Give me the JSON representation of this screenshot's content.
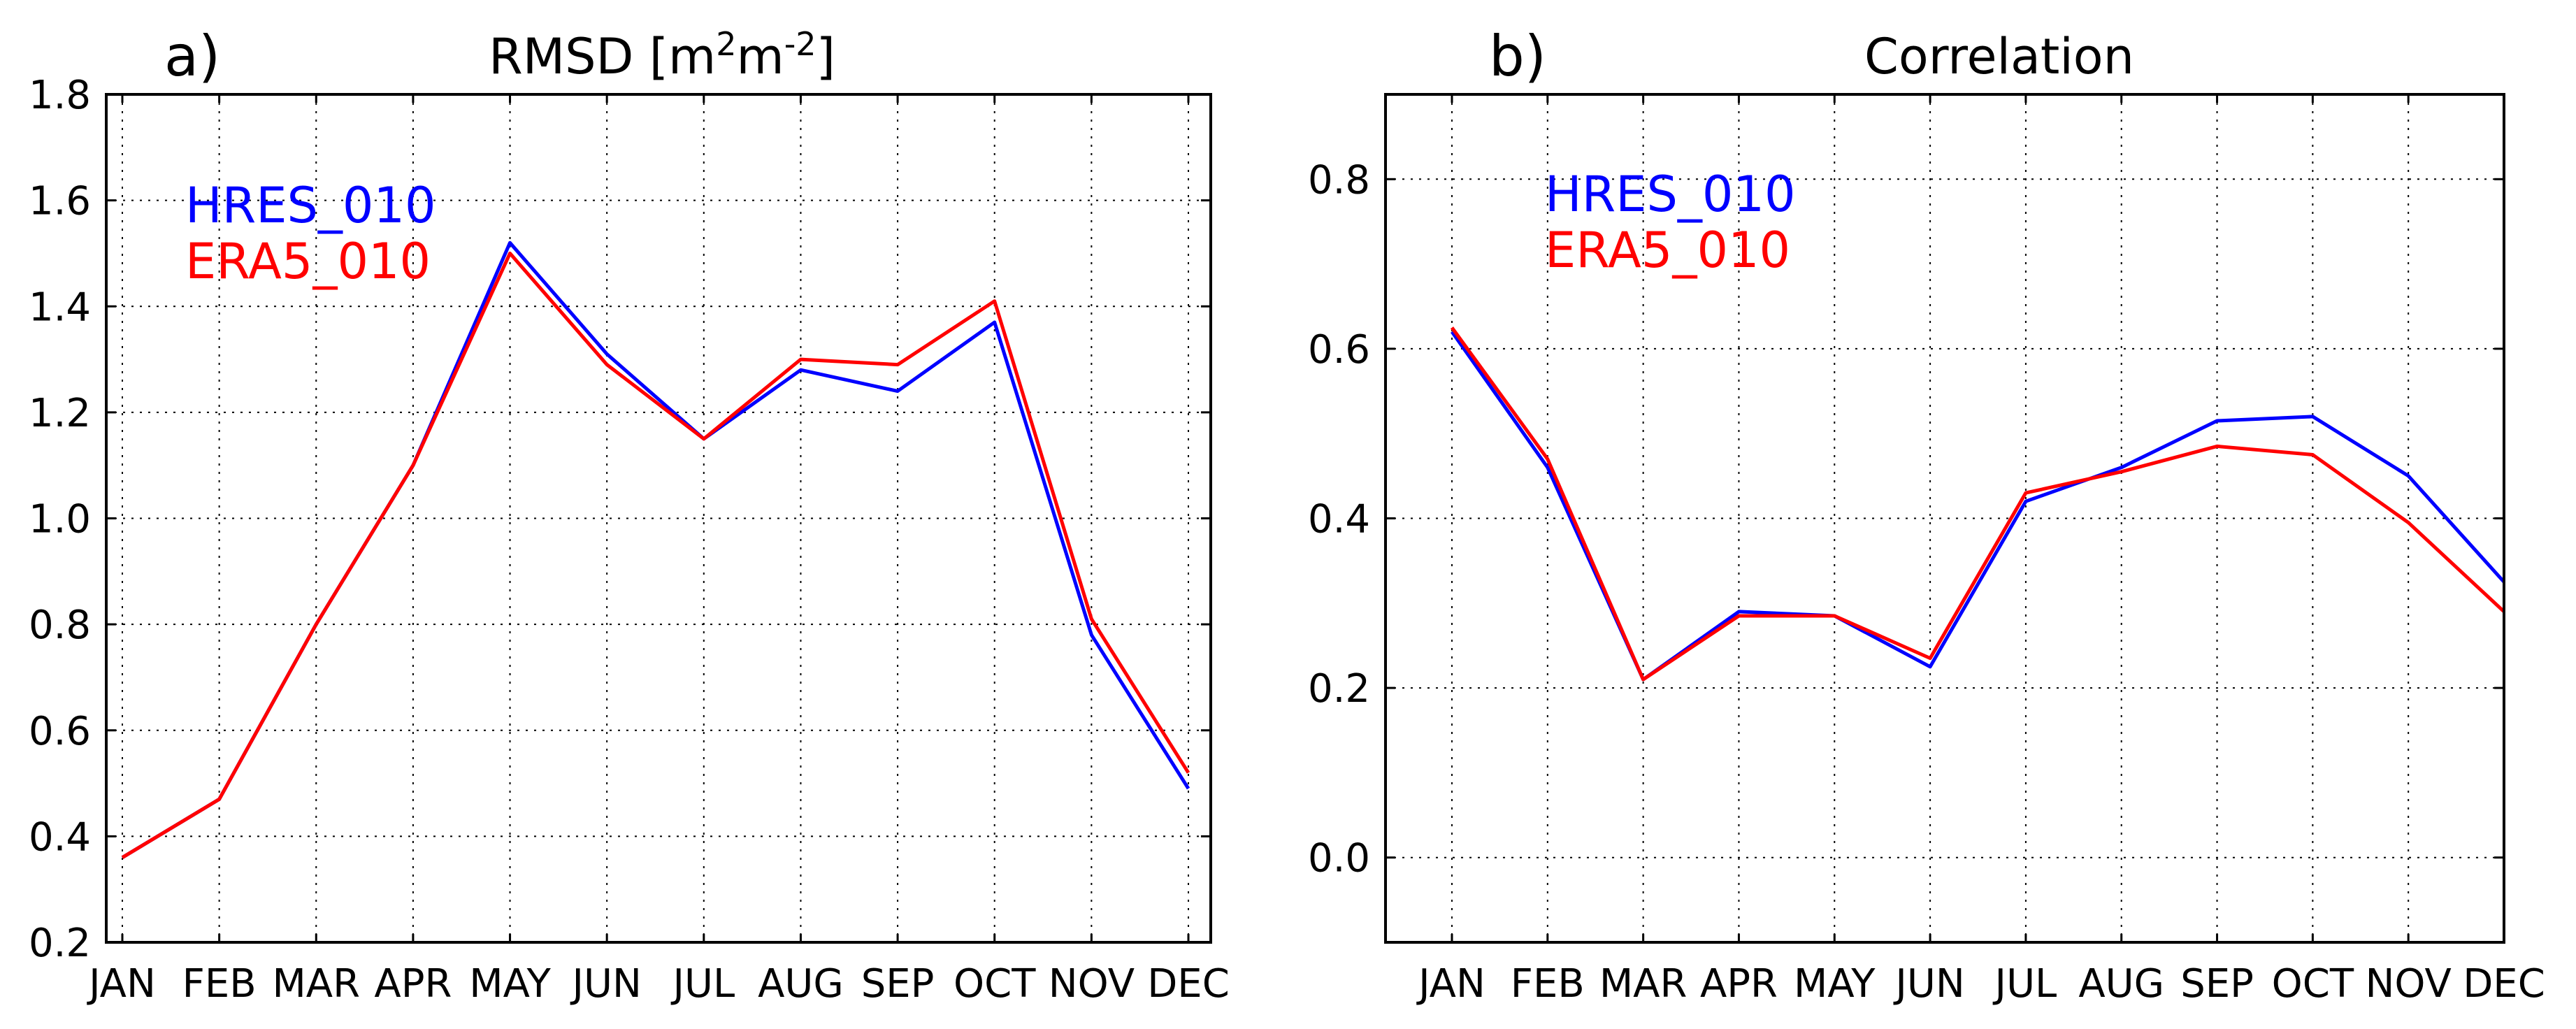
{
  "colors": {
    "series_1": "#0000ff",
    "series_2": "#ff0000"
  },
  "chart_data": [
    {
      "type": "line",
      "panel_label": "a)",
      "title_main": "RMSD [m",
      "title_sup1": "2",
      "title_mid": "m",
      "title_sup2": "-2",
      "title_end": "]",
      "categories": [
        "JAN",
        "FEB",
        "MAR",
        "APR",
        "MAY",
        "JUN",
        "JUL",
        "AUG",
        "SEP",
        "OCT",
        "NOV",
        "DEC"
      ],
      "ylim": [
        0.2,
        1.8
      ],
      "yticks": [
        "0.2",
        "0.4",
        "0.6",
        "0.8",
        "1.0",
        "1.2",
        "1.4",
        "1.6",
        "1.8"
      ],
      "grid": true,
      "legend_position": "top-left",
      "series": [
        {
          "name": "HRES_010",
          "color": "#0000ff",
          "values": [
            0.36,
            0.47,
            0.8,
            1.1,
            1.52,
            1.31,
            1.15,
            1.28,
            1.24,
            1.37,
            0.78,
            0.49
          ]
        },
        {
          "name": "ERA5_010",
          "color": "#ff0000",
          "values": [
            0.36,
            0.47,
            0.8,
            1.1,
            1.5,
            1.29,
            1.15,
            1.3,
            1.29,
            1.41,
            0.81,
            0.52
          ]
        }
      ]
    },
    {
      "type": "line",
      "panel_label": "b)",
      "title_main": "Correlation",
      "categories": [
        "JAN",
        "FEB",
        "MAR",
        "APR",
        "MAY",
        "JUN",
        "JUL",
        "AUG",
        "SEP",
        "OCT",
        "NOV",
        "DEC"
      ],
      "ylim": [
        -0.1,
        0.9
      ],
      "yticks": [
        "0.0",
        "0.2",
        "0.4",
        "0.6",
        "0.8"
      ],
      "grid": true,
      "legend_position": "top-left",
      "series": [
        {
          "name": "HRES_010",
          "color": "#0000ff",
          "values": [
            0.62,
            0.46,
            0.21,
            0.29,
            0.285,
            0.225,
            0.42,
            0.46,
            0.515,
            0.52,
            0.45,
            0.325
          ]
        },
        {
          "name": "ERA5_010",
          "color": "#ff0000",
          "values": [
            0.625,
            0.47,
            0.21,
            0.285,
            0.285,
            0.235,
            0.43,
            0.455,
            0.485,
            0.475,
            0.395,
            0.29
          ]
        }
      ]
    }
  ]
}
